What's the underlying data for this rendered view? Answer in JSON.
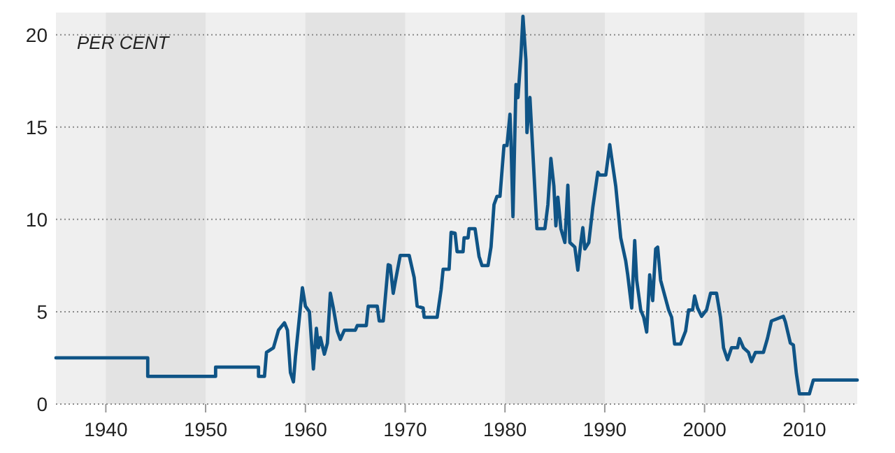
{
  "chart_data": {
    "type": "line",
    "annotations": [
      "PER CENT"
    ],
    "xlim": [
      1935,
      2015.3
    ],
    "xticks": [
      1940,
      1950,
      1960,
      1970,
      1980,
      1990,
      2000,
      2010
    ],
    "ylim": [
      0,
      21.2
    ],
    "yticks": [
      0,
      5,
      10,
      15,
      20
    ],
    "grid": "y",
    "line_style": "solid",
    "marker": "none",
    "bands": [
      {
        "axis": "x",
        "from": 1940,
        "to": 1950,
        "color": "#e3e3e3"
      },
      {
        "axis": "x",
        "from": 1960,
        "to": 1970,
        "color": "#e3e3e3"
      },
      {
        "axis": "x",
        "from": 1980,
        "to": 1990,
        "color": "#e3e3e3"
      },
      {
        "axis": "x",
        "from": 2000,
        "to": 2010,
        "color": "#e3e3e3"
      }
    ],
    "series": [
      {
        "color": "#0f5486",
        "x": [
          1935,
          1944.2,
          1944.2,
          1951,
          1951,
          1955.3,
          1955.3,
          1955.9,
          1956.1,
          1956.8,
          1957.3,
          1957.9,
          1958.2,
          1958.5,
          1958.8,
          1959.0,
          1959.7,
          1960.0,
          1960.4,
          1960.6,
          1960.8,
          1961.1,
          1961.3,
          1961.5,
          1961.9,
          1962.2,
          1962.5,
          1962.8,
          1963.2,
          1963.5,
          1963.9,
          1965.0,
          1965.2,
          1966.1,
          1966.3,
          1967.2,
          1967.4,
          1967.8,
          1968.3,
          1968.5,
          1968.8,
          1969.0,
          1969.5,
          1970.4,
          1970.9,
          1971.2,
          1971.8,
          1971.9,
          1973.2,
          1973.6,
          1973.8,
          1974.4,
          1974.6,
          1975.0,
          1975.2,
          1975.8,
          1975.9,
          1976.3,
          1976.4,
          1977.0,
          1977.4,
          1977.7,
          1978.3,
          1978.6,
          1978.9,
          1979.2,
          1979.5,
          1979.9,
          1980.2,
          1980.5,
          1980.6,
          1980.8,
          1981.1,
          1981.3,
          1981.6,
          1981.8,
          1982.1,
          1982.2,
          1982.5,
          1983.2,
          1984.0,
          1984.3,
          1984.6,
          1984.9,
          1985.1,
          1985.3,
          1985.6,
          1986.0,
          1986.3,
          1986.5,
          1987.0,
          1987.3,
          1987.6,
          1987.8,
          1988.0,
          1988.4,
          1988.8,
          1989.3,
          1989.5,
          1990.1,
          1990.5,
          1990.9,
          1991.1,
          1991.6,
          1992.1,
          1992.3,
          1992.7,
          1993.0,
          1993.2,
          1993.6,
          1993.9,
          1994.2,
          1994.5,
          1994.8,
          1995.1,
          1995.3,
          1995.6,
          1996.4,
          1996.7,
          1997.0,
          1997.6,
          1998.1,
          1998.4,
          1998.8,
          1999.0,
          1999.3,
          1999.7,
          2000.2,
          2000.6,
          2001.2,
          2001.6,
          2001.9,
          2002.3,
          2002.7,
          2003.3,
          2003.5,
          2003.9,
          2004.4,
          2004.7,
          2005.1,
          2005.9,
          2006.3,
          2006.7,
          2007.9,
          2008.1,
          2008.6,
          2008.9,
          2009.2,
          2009.5,
          2010.5,
          2010.9,
          2015.3
        ],
        "values": [
          2.5,
          2.5,
          1.5,
          1.5,
          2.0,
          2.0,
          1.5,
          1.5,
          2.8,
          3.05,
          4.0,
          4.4,
          4.0,
          1.7,
          1.2,
          2.55,
          6.3,
          5.3,
          5.0,
          3.45,
          1.9,
          4.1,
          3.05,
          3.6,
          2.7,
          3.3,
          6.0,
          5.2,
          3.95,
          3.5,
          4.0,
          4.0,
          4.25,
          4.25,
          5.3,
          5.3,
          4.5,
          4.5,
          7.55,
          7.5,
          6.0,
          6.6,
          8.05,
          8.05,
          6.85,
          5.3,
          5.2,
          4.7,
          4.7,
          6.2,
          7.3,
          7.3,
          9.3,
          9.25,
          8.25,
          8.25,
          9.0,
          9.0,
          9.5,
          9.5,
          8.0,
          7.5,
          7.5,
          8.5,
          10.8,
          11.25,
          11.25,
          14.0,
          14.0,
          15.7,
          14.3,
          10.15,
          17.3,
          16.6,
          18.9,
          21.0,
          18.6,
          14.7,
          16.6,
          9.5,
          9.5,
          10.8,
          13.3,
          11.8,
          9.65,
          11.2,
          9.5,
          8.75,
          11.85,
          8.75,
          8.5,
          7.25,
          8.75,
          9.55,
          8.4,
          8.75,
          10.65,
          12.55,
          12.4,
          12.4,
          14.05,
          12.55,
          11.8,
          9.0,
          7.75,
          7.0,
          5.2,
          8.85,
          6.7,
          5.1,
          4.7,
          3.9,
          7.0,
          5.6,
          8.4,
          8.5,
          6.7,
          5.1,
          4.7,
          3.25,
          3.25,
          3.95,
          5.1,
          5.1,
          5.85,
          5.2,
          4.75,
          5.1,
          6.0,
          6.0,
          4.7,
          3.05,
          2.4,
          3.05,
          3.05,
          3.55,
          3.05,
          2.8,
          2.3,
          2.8,
          2.8,
          3.55,
          4.5,
          4.75,
          4.45,
          3.3,
          3.2,
          1.65,
          0.55,
          0.55,
          1.3,
          1.3
        ]
      }
    ]
  }
}
